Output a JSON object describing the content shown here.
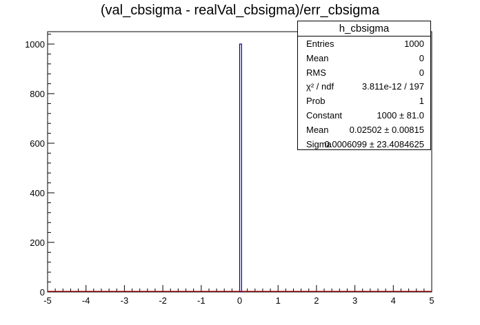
{
  "chart_data": {
    "type": "bar",
    "title": "(val_cbsigma - realVal_cbsigma)/err_cbsigma",
    "xlabel": "",
    "ylabel": "",
    "xlim": [
      -5,
      5
    ],
    "ylim": [
      0,
      1050
    ],
    "x_ticks": [
      "-5",
      "-4",
      "-3",
      "-2",
      "-1",
      "0",
      "1",
      "2",
      "3",
      "4",
      "5"
    ],
    "y_ticks": [
      "0",
      "200",
      "400",
      "600",
      "800",
      "1000"
    ],
    "bins": [
      {
        "x_low": 0.0,
        "x_high": 0.05,
        "value": 1000
      }
    ],
    "fit": {
      "function": "cbsigma",
      "color": "#cc0000"
    },
    "histogram_color": "#000080",
    "grid": false,
    "stats_box": {
      "title": "h_cbsigma",
      "rows": [
        {
          "key": "Entries",
          "value": "1000"
        },
        {
          "key": "Mean",
          "value": "0"
        },
        {
          "key": "RMS",
          "value": "0"
        },
        {
          "key": "χ² / ndf",
          "value": "3.811e-12 / 197"
        },
        {
          "key": "Prob",
          "value": "1"
        },
        {
          "key": "Constant",
          "value": "1000 ± 81.0"
        },
        {
          "key": "Mean",
          "value": "0.02502 ± 0.00815"
        },
        {
          "key": "Sigma",
          "value": "0.0006099 ± 23.4084625"
        }
      ]
    }
  }
}
